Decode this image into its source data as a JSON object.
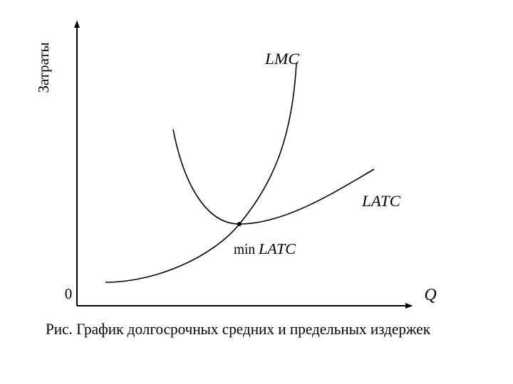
{
  "diagram": {
    "y_axis_label": "Затраты",
    "origin_label": "0",
    "x_axis_label": "Q",
    "curves": [
      {
        "label": "LMC"
      },
      {
        "label": "LATC"
      }
    ],
    "point_label": {
      "prefix": "min",
      "name": "LATC"
    }
  },
  "caption": "Рис. График долгосрочных средних и предельных издержек"
}
